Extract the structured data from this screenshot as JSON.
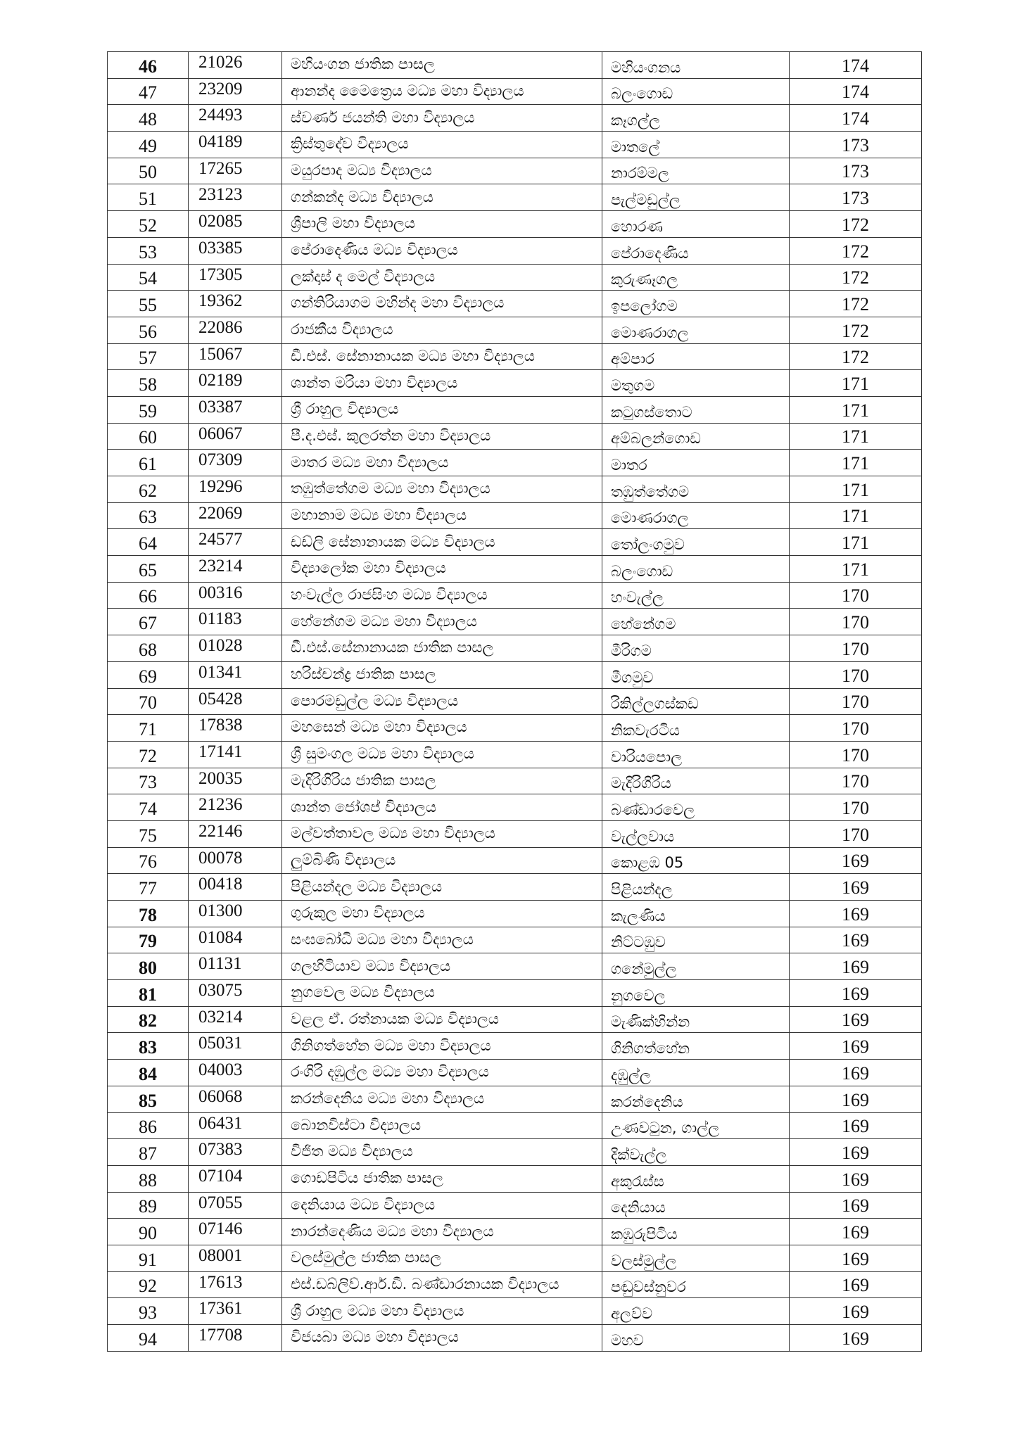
{
  "table": {
    "rows": [
      {
        "no": "46",
        "code": "21026",
        "school": "මහියංගන ජාතික පාසල",
        "town": "මහියංගනය",
        "marks": "174",
        "emphasis": true
      },
      {
        "no": "47",
        "code": "23209",
        "school": "ආනන්ද මෛත්‍රෙය මධ්‍ය මහා විද්‍යාලය",
        "town": "බලංගොඩ",
        "marks": "174"
      },
      {
        "no": "48",
        "code": "24493",
        "school": "ස්වර්ණ ජයන්ති මහා විද්‍යාලය",
        "town": "කෑගල්ල",
        "marks": "174"
      },
      {
        "no": "49",
        "code": "04189",
        "school": "ක්‍රිස්තුදේව විද්‍යාලය",
        "town": "මාතලේ",
        "marks": "173"
      },
      {
        "no": "50",
        "code": "17265",
        "school": "මයුරපාද මධ්‍ය විද්‍යාලය",
        "town": "නාරම්මල",
        "marks": "173"
      },
      {
        "no": "51",
        "code": "23123",
        "school": "ගන්කන්ද මධ්‍ය විද්‍යාලය",
        "town": "පැල්මඩුල්ල",
        "marks": "173"
      },
      {
        "no": "52",
        "code": "02085",
        "school": "ශ්‍රීපාලි මහා විද්‍යාලය",
        "town": "හොරණ",
        "marks": "172"
      },
      {
        "no": "53",
        "code": "03385",
        "school": "පේරාදෙණිය මධ්‍ය විද්‍යාලය",
        "town": "පේරාදෙණිය",
        "marks": "172"
      },
      {
        "no": "54",
        "code": "17305",
        "school": "ලක්දාස් ද මෙල් විද්‍යාලය",
        "town": "කුරුණෑගල",
        "marks": "172"
      },
      {
        "no": "55",
        "code": "19362",
        "school": "ගන්තිරියාගම මහින්ද මහා විද්‍යාලය",
        "town": "ඉපලෝගම",
        "marks": "172"
      },
      {
        "no": "56",
        "code": "22086",
        "school": "රාජකීය විද්‍යාලය",
        "town": "මොණරාගල",
        "marks": "172"
      },
      {
        "no": "57",
        "code": "15067",
        "school": "ඩී.එස්. සේනානායක මධ්‍ය මහා විද්‍යාලය",
        "town": "අම්පාර",
        "marks": "172"
      },
      {
        "no": "58",
        "code": "02189",
        "school": "ශාන්ත මරියා මහා විද්‍යාලය",
        "town": "මතුගම",
        "marks": "171"
      },
      {
        "no": "59",
        "code": "03387",
        "school": "ශ්‍රී රාහුල විද්‍යාලය",
        "town": "කටුගස්තොට",
        "marks": "171"
      },
      {
        "no": "60",
        "code": "06067",
        "school": "පී.ද.එස්. කුලරත්න මහා විද්‍යාලය",
        "town": "අම්බලන්ගොඩ",
        "marks": "171"
      },
      {
        "no": "61",
        "code": "07309",
        "school": "මාතර මධ්‍ය මහා විද්‍යාලය",
        "town": "මාතර",
        "marks": "171"
      },
      {
        "no": "62",
        "code": "19296",
        "school": "තඹුත්තේගම මධ්‍ය මහා විද්‍යාලය",
        "town": "තඹුත්තේගම",
        "marks": "171"
      },
      {
        "no": "63",
        "code": "22069",
        "school": "මහානාම මධ්‍ය මහා විද්‍යාලය",
        "town": "මොණරාගල",
        "marks": "171"
      },
      {
        "no": "64",
        "code": "24577",
        "school": "ඩඩ්ලි සේනානායක මධ්‍ය විද්‍යාලය",
        "town": "තෝලංගමුව",
        "marks": "171"
      },
      {
        "no": "65",
        "code": "23214",
        "school": "විද්‍යාලෝක මහා විද්‍යාලය",
        "town": "බලංගොඩ",
        "marks": "171"
      },
      {
        "no": "66",
        "code": "00316",
        "school": "හංවැල්ල රාජසිංහ මධ්‍ය විද්‍යාලය",
        "town": "හංවැල්ල",
        "marks": "170"
      },
      {
        "no": "67",
        "code": "01183",
        "school": "හේනේගම මධ්‍ය මහා විද්‍යාලය",
        "town": "හේනේගම",
        "marks": "170"
      },
      {
        "no": "68",
        "code": "01028",
        "school": "ඩී.එස්.සේනානායක ජාතික පාසල",
        "town": "මීරිගම",
        "marks": "170"
      },
      {
        "no": "69",
        "code": "01341",
        "school": "හරිස්චන්ද්‍ර ජාතික පාසල",
        "town": "මීගමුව",
        "marks": "170"
      },
      {
        "no": "70",
        "code": "05428",
        "school": "පොරමඩුල්ල මධ්‍ය විද්‍යාලය",
        "town": "රිකිල්ලගස්කඩ",
        "marks": "170"
      },
      {
        "no": "71",
        "code": "17838",
        "school": "මහසෙන් මධ්‍ය මහා විද්‍යාලය",
        "town": "නිකවැරටිය",
        "marks": "170"
      },
      {
        "no": "72",
        "code": "17141",
        "school": "ශ්‍රී සුමංගල මධ්‍ය මහා විද්‍යාලය",
        "town": "වාරියපොල",
        "marks": "170"
      },
      {
        "no": "73",
        "code": "20035",
        "school": "මැදිරිගිරිය ජාතික පාසල",
        "town": "මැදිරිගිරිය",
        "marks": "170"
      },
      {
        "no": "74",
        "code": "21236",
        "school": "ශාන්ත ජෝශප් විද්‍යාලය",
        "town": "බණ්ඩාරවෙල",
        "marks": "170"
      },
      {
        "no": "75",
        "code": "22146",
        "school": "මල්වත්තාවල මධ්‍ය මහා විද්‍යාලය",
        "town": "වැල්ලවාය",
        "marks": "170"
      },
      {
        "no": "76",
        "code": "00078",
        "school": "ලුම්බිණි විද්‍යාලය",
        "town": "කොළඹ 05",
        "marks": "169"
      },
      {
        "no": "77",
        "code": "00418",
        "school": "පිළියන්දල මධ්‍ය විද්‍යාලය",
        "town": "පිළියන්දල",
        "marks": "169"
      },
      {
        "no": "78",
        "code": "01300",
        "school": "ගුරුකුල මහා විද්‍යාලය",
        "town": "කැලණිය",
        "marks": "169",
        "emphasis": true
      },
      {
        "no": "79",
        "code": "01084",
        "school": "සංඝබෝධි මධ්‍ය මහා විද්‍යාලය",
        "town": "නිට්ටඹුව",
        "marks": "169",
        "emphasis": true
      },
      {
        "no": "80",
        "code": "01131",
        "school": "ගලහිටියාව මධ්‍ය විද්‍යාලය",
        "town": "ගනේමුල්ල",
        "marks": "169",
        "emphasis": true
      },
      {
        "no": "81",
        "code": "03075",
        "school": "නුගවෙල මධ්‍ය විද්‍යාලය",
        "town": "නුගවෙල",
        "marks": "169",
        "emphasis": true
      },
      {
        "no": "82",
        "code": "03214",
        "school": "වළල ඒ. රත්නායක මධ්‍ය විද්‍යාලය",
        "town": "මැණික්හින්න",
        "marks": "169",
        "emphasis": true
      },
      {
        "no": "83",
        "code": "05031",
        "school": "ගිනිගත්හේන මධ්‍ය මහා විද්‍යාලය",
        "town": "ගිනිගත්හේන",
        "marks": "169",
        "emphasis": true
      },
      {
        "no": "84",
        "code": "04003",
        "school": "රංගිරි දඹුල්ල මධ්‍ය මහා විද්‍යාලය",
        "town": "දඹුල්ල",
        "marks": "169",
        "emphasis": true
      },
      {
        "no": "85",
        "code": "06068",
        "school": "කරන්දෙනිය මධ්‍ය මහා විද්‍යාලය",
        "town": "කරන්දෙනිය",
        "marks": "169",
        "emphasis": true
      },
      {
        "no": "86",
        "code": "06431",
        "school": "බොනවිස්ටා විද්‍යාලය",
        "town": "උණවටුන, ගාල්ල",
        "marks": "169"
      },
      {
        "no": "87",
        "code": "07383",
        "school": "විජිත මධ්‍ය විද්‍යාලය",
        "town": "දික්වැල්ල",
        "marks": "169"
      },
      {
        "no": "88",
        "code": "07104",
        "school": "ගොඩපිටිය ජාතික පාසල",
        "town": "අකුරැස්ස",
        "marks": "169"
      },
      {
        "no": "89",
        "code": "07055",
        "school": "දෙනියාය මධ්‍ය විද්‍යාලය",
        "town": "දෙනියාය",
        "marks": "169"
      },
      {
        "no": "90",
        "code": "07146",
        "school": "නාරන්දෙණිය මධ්‍ය මහා විද්‍යාලය",
        "town": "කඹුරුපිටිය",
        "marks": "169"
      },
      {
        "no": "91",
        "code": "08001",
        "school": "වලස්මුල්ල ජාතික පාසල",
        "town": "වලස්මුල්ල",
        "marks": "169"
      },
      {
        "no": "92",
        "code": "17613",
        "school": "එස්.ඩබ්ලිව්.ආර්.ඩී. බණ්ඩාරනායක විද්‍යාලය",
        "town": "පඬුවස්නුවර",
        "marks": "169"
      },
      {
        "no": "93",
        "code": "17361",
        "school": "ශ්‍රී රාහුල මධ්‍ය මහා විද්‍යාලය",
        "town": "අලව්ව",
        "marks": "169"
      },
      {
        "no": "94",
        "code": "17708",
        "school": "විජයබා මධ්‍ය මහා විද්‍යාලය",
        "town": "මහව",
        "marks": "169"
      }
    ]
  }
}
